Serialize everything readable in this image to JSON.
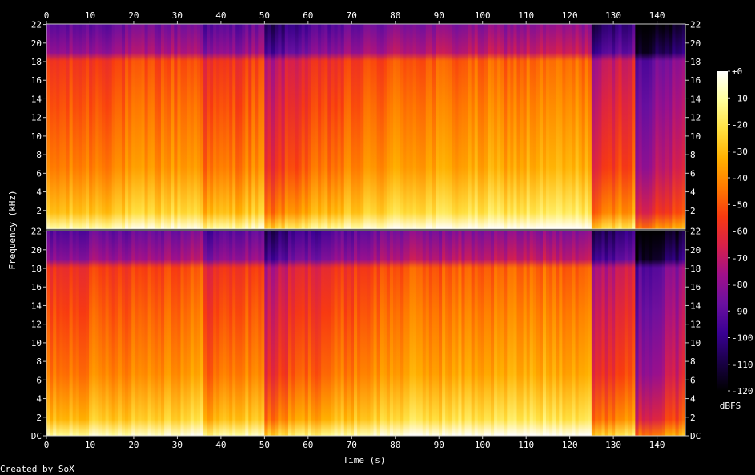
{
  "chart_data": {
    "type": "heatmap",
    "title": "",
    "xlabel": "Time (s)",
    "ylabel": "Frequency (kHz)",
    "xlim": [
      0,
      146.5
    ],
    "ylim": [
      0,
      22.05
    ],
    "x_ticks": [
      0,
      10,
      20,
      30,
      40,
      50,
      60,
      70,
      80,
      90,
      100,
      110,
      120,
      130,
      140
    ],
    "y_ticks": [
      0,
      2,
      4,
      6,
      8,
      10,
      12,
      14,
      16,
      18,
      20,
      22
    ],
    "y_tick_labels": [
      "DC",
      "2",
      "4",
      "6",
      "8",
      "10",
      "12",
      "14",
      "16",
      "18",
      "20",
      "22"
    ],
    "top_channel_bottom_label": "22",
    "channels": 2,
    "colorbar": {
      "label": "dBFS",
      "ticks": [
        "+0",
        "-10",
        "-20",
        "-30",
        "-40",
        "-50",
        "-60",
        "-70",
        "-80",
        "-90",
        "-100",
        "-110",
        "-120"
      ],
      "range": [
        -120,
        0
      ],
      "colors": [
        "#000000",
        "#1a0048",
        "#3a0094",
        "#6a10a0",
        "#a0108a",
        "#d8204a",
        "#f83a10",
        "#ff7a00",
        "#ffb000",
        "#ffe040",
        "#ffff9a",
        "#ffffff"
      ]
    },
    "segments": [
      {
        "start": 0,
        "end": 36,
        "level": -52,
        "fade_to": -44
      },
      {
        "start": 36,
        "end": 50,
        "level": -55,
        "fade_to": -47
      },
      {
        "start": 50,
        "end": 57,
        "level": -70,
        "fade_to": -58
      },
      {
        "start": 57,
        "end": 84,
        "level": -58,
        "fade_to": -42
      },
      {
        "start": 84,
        "end": 125,
        "level": -44,
        "fade_to": -40
      },
      {
        "start": 125,
        "end": 135,
        "level": -72,
        "fade_to": -55
      },
      {
        "start": 135,
        "end": 146.5,
        "level": -88,
        "fade_to": -72
      }
    ],
    "footer": "Created by SoX"
  }
}
